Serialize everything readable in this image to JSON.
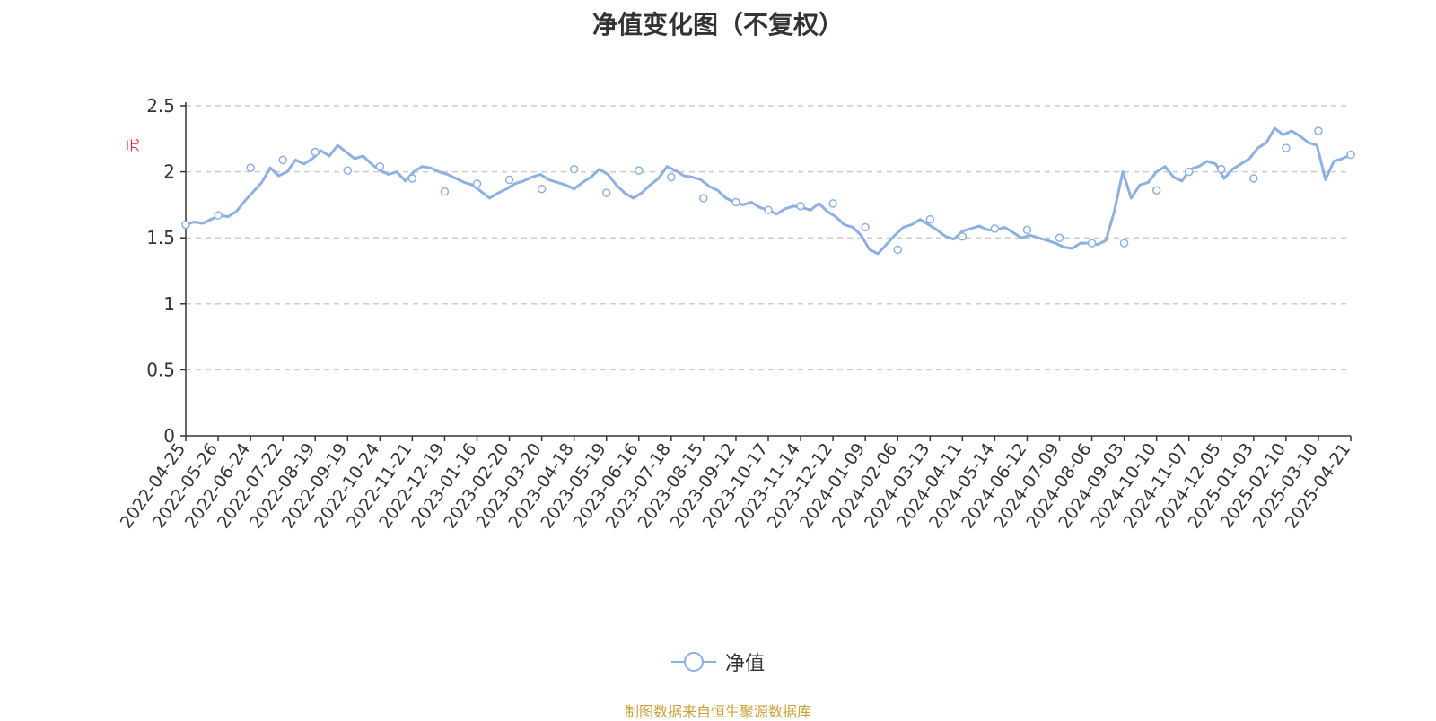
{
  "chart_data": {
    "type": "line",
    "title": "净值变化图（不复权）",
    "ylabel": "元",
    "ylim": [
      0,
      2.5
    ],
    "y_ticks": [
      "0",
      "0.5",
      "1",
      "1.5",
      "2",
      "2.5"
    ],
    "grid": true,
    "legend_position": "bottom",
    "x_tick_labels": [
      "2022-04-25",
      "2022-05-26",
      "2022-06-24",
      "2022-07-22",
      "2022-08-19",
      "2022-09-19",
      "2022-10-24",
      "2022-11-21",
      "2022-12-19",
      "2023-01-16",
      "2023-02-20",
      "2023-03-20",
      "2023-04-18",
      "2023-05-19",
      "2023-06-16",
      "2023-07-18",
      "2023-08-15",
      "2023-09-12",
      "2023-10-17",
      "2023-11-14",
      "2023-12-12",
      "2024-01-09",
      "2024-02-06",
      "2024-03-13",
      "2024-04-11",
      "2024-05-14",
      "2024-06-12",
      "2024-07-09",
      "2024-08-06",
      "2024-09-03",
      "2024-10-10",
      "2024-11-07",
      "2024-12-05",
      "2025-01-03",
      "2025-02-10",
      "2025-03-10",
      "2025-04-21"
    ],
    "series": [
      {
        "name": "净值",
        "color": "#8eb0e0",
        "values": [
          1.6,
          1.67,
          2.03,
          2.09,
          2.15,
          2.01,
          2.04,
          1.95,
          1.85,
          1.91,
          1.94,
          1.87,
          2.02,
          1.84,
          2.01,
          1.96,
          1.8,
          1.77,
          1.71,
          1.74,
          1.76,
          1.58,
          1.41,
          1.64,
          1.51,
          1.57,
          1.56,
          1.5,
          1.46,
          1.46,
          1.86,
          2.0,
          2.02,
          1.95,
          2.18,
          2.31,
          2.13
        ],
        "path_values": [
          1.6,
          1.62,
          1.61,
          1.64,
          1.67,
          1.66,
          1.7,
          1.78,
          1.85,
          1.92,
          2.03,
          1.97,
          2.0,
          2.09,
          2.06,
          2.1,
          2.16,
          2.12,
          2.2,
          2.15,
          2.1,
          2.12,
          2.06,
          2.01,
          1.98,
          2.0,
          1.93,
          2.0,
          2.04,
          2.03,
          2.0,
          1.98,
          1.95,
          1.92,
          1.9,
          1.85,
          1.8,
          1.84,
          1.87,
          1.91,
          1.93,
          1.96,
          1.98,
          1.94,
          1.92,
          1.9,
          1.87,
          1.92,
          1.96,
          2.02,
          1.98,
          1.9,
          1.84,
          1.8,
          1.84,
          1.9,
          1.95,
          2.04,
          2.01,
          1.97,
          1.96,
          1.94,
          1.89,
          1.86,
          1.8,
          1.77,
          1.75,
          1.77,
          1.73,
          1.71,
          1.68,
          1.72,
          1.74,
          1.73,
          1.71,
          1.76,
          1.7,
          1.66,
          1.6,
          1.58,
          1.52,
          1.41,
          1.38,
          1.45,
          1.52,
          1.58,
          1.6,
          1.64,
          1.6,
          1.56,
          1.51,
          1.49,
          1.55,
          1.57,
          1.59,
          1.56,
          1.56,
          1.58,
          1.54,
          1.5,
          1.52,
          1.5,
          1.48,
          1.46,
          1.43,
          1.42,
          1.46,
          1.46,
          1.45,
          1.48,
          1.7,
          2.0,
          1.8,
          1.9,
          1.92,
          2.0,
          2.04,
          1.96,
          1.93,
          2.02,
          2.04,
          2.08,
          2.06,
          1.95,
          2.02,
          2.06,
          2.1,
          2.18,
          2.22,
          2.33,
          2.28,
          2.31,
          2.27,
          2.22,
          2.2,
          1.94,
          2.08,
          2.1,
          2.13
        ]
      }
    ]
  },
  "legend": {
    "label": "净值"
  },
  "source": {
    "text": "制图数据来自恒生聚源数据库",
    "color": "#c9a23a"
  },
  "colors": {
    "ylabel": "#e0282d",
    "grid": "#cccccc",
    "axis": "#333333"
  }
}
